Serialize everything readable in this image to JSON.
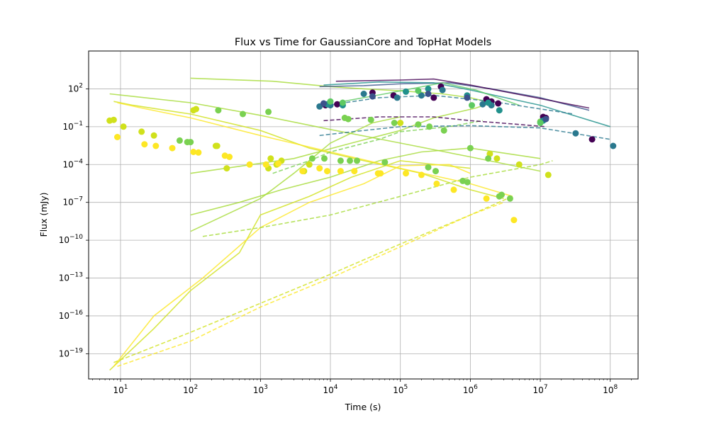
{
  "chart_data": {
    "type": "scatter",
    "title": "Flux vs Time for GaussianCore and TopHat Models",
    "xlabel": "Time (s)",
    "ylabel": "Flux (mJy)",
    "xscale": "log",
    "yscale": "log",
    "xlim": [
      3.5,
      250000000.0
    ],
    "ylim": [
      1e-21,
      100000.0
    ],
    "grid": true,
    "x_ticks": [
      {
        "value": 10,
        "base": "10",
        "exp": "1"
      },
      {
        "value": 100,
        "base": "10",
        "exp": "2"
      },
      {
        "value": 1000,
        "base": "10",
        "exp": "3"
      },
      {
        "value": 10000,
        "base": "10",
        "exp": "4"
      },
      {
        "value": 100000,
        "base": "10",
        "exp": "5"
      },
      {
        "value": 1000000,
        "base": "10",
        "exp": "6"
      },
      {
        "value": 10000000,
        "base": "10",
        "exp": "7"
      },
      {
        "value": 100000000,
        "base": "10",
        "exp": "8"
      }
    ],
    "y_ticks": [
      {
        "value": 1e-19,
        "base": "10",
        "exp": "−19"
      },
      {
        "value": 1e-16,
        "base": "10",
        "exp": "−16"
      },
      {
        "value": 1e-13,
        "base": "10",
        "exp": "−13"
      },
      {
        "value": 1e-10,
        "base": "10",
        "exp": "−10"
      },
      {
        "value": 1e-07,
        "base": "10",
        "exp": "−7"
      },
      {
        "value": 0.0001,
        "base": "10",
        "exp": "−4"
      },
      {
        "value": 0.1,
        "base": "10",
        "exp": "−1"
      },
      {
        "value": 100,
        "base": "10",
        "exp": "2"
      }
    ],
    "colormap": "viridis",
    "lines": [
      {
        "color": "#a5db36",
        "dash": false,
        "x": [
          100,
          1500,
          10000,
          30000,
          100000,
          400000,
          1000000,
          2000000,
          1200000,
          300000,
          100000,
          20000,
          3000,
          100
        ],
        "y": [
          700,
          400,
          150,
          100,
          70,
          40,
          20,
          8,
          3,
          0.5,
          0.05,
          0.005,
          0.0003,
          2e-05
        ]
      },
      {
        "color": "#a5db36",
        "dash": false,
        "x": [
          7,
          15,
          100,
          1000,
          10000,
          100000,
          1000000,
          10000000
        ],
        "y": [
          40,
          25,
          8,
          0.8,
          0.06,
          0.005,
          0.0004,
          3e-05
        ]
      },
      {
        "color": "#a5db36",
        "dash": false,
        "x": [
          100,
          500,
          2000,
          10000,
          50000,
          200000,
          1000000,
          10000000
        ],
        "y": [
          1e-08,
          1e-07,
          1e-06,
          1e-05,
          0.0002,
          0.001,
          0.002,
          0.0003
        ]
      },
      {
        "color": "#a5db36",
        "dash": false,
        "x": [
          100,
          1000,
          3000,
          10000,
          40000,
          100000
        ],
        "y": [
          5e-10,
          2e-07,
          2e-05,
          0.005,
          0.2,
          0.6
        ]
      },
      {
        "color": "#d0e11c",
        "dash": false,
        "x": [
          8,
          15,
          100,
          1000,
          5000,
          30000,
          200000,
          1000000,
          3000000
        ],
        "y": [
          10,
          5,
          1,
          0.05,
          0.002,
          0.0002,
          2e-05,
          1e-06,
          2e-07
        ]
      },
      {
        "color": "#d0e11c",
        "dash": false,
        "x": [
          7,
          30,
          100,
          500,
          1000,
          5000,
          20000,
          100000,
          1000000
        ],
        "y": [
          5e-21,
          1e-17,
          1e-14,
          1e-11,
          1e-08,
          3e-07,
          1e-05,
          0.0002,
          5e-05
        ]
      },
      {
        "color": "#fde725",
        "dash": false,
        "x": [
          9,
          20,
          100,
          1000,
          10000,
          100000,
          1000000,
          4000000
        ],
        "y": [
          8,
          3,
          0.5,
          0.02,
          0.001,
          5e-05,
          3e-06,
          3e-07
        ]
      },
      {
        "color": "#fde725",
        "dash": false,
        "x": [
          8,
          30,
          150,
          1000,
          5000,
          30000,
          100000,
          500000,
          1000000
        ],
        "y": [
          1e-20,
          1e-16,
          1e-13,
          1e-09,
          1e-07,
          3e-06,
          8e-05,
          0.0001,
          2e-05
        ]
      },
      {
        "color": "#d0e11c",
        "dash": true,
        "x": [
          8,
          100,
          1000,
          10000,
          100000,
          1000000,
          4000000
        ],
        "y": [
          2e-20,
          5e-18,
          1e-15,
          2e-13,
          5e-11,
          1e-08,
          3e-07
        ]
      },
      {
        "color": "#fde725",
        "dash": true,
        "x": [
          9,
          100,
          1000,
          10000,
          100000,
          1000000,
          3000000
        ],
        "y": [
          1e-20,
          1e-18,
          5e-16,
          1e-13,
          3e-11,
          1e-08,
          1e-07
        ]
      },
      {
        "color": "#a5db36",
        "dash": true,
        "x": [
          150,
          1000,
          10000,
          100000,
          1000000,
          10000000,
          15000000
        ],
        "y": [
          2e-10,
          1e-09,
          1e-08,
          3e-07,
          1e-05,
          0.0001,
          0.0002
        ]
      },
      {
        "color": "#7ad151",
        "dash": true,
        "x": [
          1500,
          5000,
          10000,
          50000,
          100000,
          500000,
          1500000
        ],
        "y": [
          2e-05,
          0.0002,
          0.001,
          0.01,
          0.04,
          0.1,
          0.3
        ]
      },
      {
        "color": "#440154",
        "dash": true,
        "x": [
          8000,
          50000,
          300000,
          1000000,
          5000000,
          12000000
        ],
        "y": [
          0.3,
          0.6,
          0.6,
          0.3,
          0.15,
          0.1
        ]
      },
      {
        "color": "#2a788e",
        "dash": true,
        "x": [
          7000,
          30000,
          100000,
          1000000,
          10000000,
          100000000
        ],
        "y": [
          0.02,
          0.05,
          0.1,
          0.12,
          0.08,
          0.01
        ]
      },
      {
        "color": "#3b528b",
        "dash": false,
        "x": [
          7000,
          30000,
          100000,
          500000,
          2000000,
          10000000,
          50000000
        ],
        "y": [
          150,
          180,
          250,
          300,
          100,
          20,
          2
        ]
      },
      {
        "color": "#21918c",
        "dash": false,
        "x": [
          8000,
          50000,
          300000,
          1000000,
          10000000,
          100000000
        ],
        "y": [
          200,
          350,
          300,
          80,
          5,
          0.1
        ]
      },
      {
        "color": "#440154",
        "dash": false,
        "x": [
          12000,
          100000,
          300000,
          1000000,
          50000000
        ],
        "y": [
          400,
          500,
          600,
          200,
          3
        ]
      },
      {
        "color": "#5ec962",
        "dash": false,
        "x": [
          12000,
          60000,
          400000,
          1200000,
          5000000
        ],
        "y": [
          8,
          40,
          300,
          80,
          5
        ]
      },
      {
        "color": "#2a788e",
        "dash": true,
        "x": [
          9000,
          50000,
          300000,
          2000000,
          30000000
        ],
        "y": [
          5,
          20,
          30,
          10,
          1
        ]
      }
    ],
    "points": [
      {
        "color": "#d0e11c",
        "x": [
          7,
          8,
          11,
          20,
          30,
          110,
          120,
          230,
          240,
          330,
          1300,
          1400,
          1700,
          2000,
          4200,
          5000,
          100000.0,
          1900000.0,
          2400000.0,
          5000000.0,
          13000000.0
        ],
        "y": [
          0.3,
          0.35,
          0.1,
          0.04,
          0.02,
          2,
          2.5,
          0.003,
          0.003,
          5e-05,
          5e-05,
          0.0003,
          0.0001,
          0.0002,
          3e-05,
          0.0001,
          0.2,
          0.0007,
          0.0003,
          0.0001,
          1.5e-05
        ]
      },
      {
        "color": "#fde725",
        "x": [
          9,
          22,
          32,
          55,
          110,
          130,
          310,
          360,
          700,
          1200,
          1800,
          4000,
          7000,
          9000,
          14000,
          22000,
          48000,
          52000,
          120000,
          200000,
          330000,
          580000,
          1700000.0,
          4200000.0
        ],
        "y": [
          0.015,
          0.004,
          0.003,
          0.002,
          0.001,
          0.0009,
          0.0005,
          0.0004,
          0.0001,
          0.0001,
          0.00012,
          3e-05,
          5e-05,
          3e-05,
          3e-05,
          3e-05,
          2e-05,
          2e-05,
          2e-05,
          1.5e-05,
          3e-06,
          1e-06,
          2e-07,
          4e-09
        ]
      },
      {
        "color": "#7ad151",
        "x": [
          70,
          90,
          100,
          250,
          560,
          1300,
          5500,
          8200,
          16000,
          18000,
          38000,
          82000,
          180000,
          260000,
          420000,
          1000000.0,
          1800000.0,
          2600000.0,
          3700000.0,
          780000.0,
          910000.0,
          2800000.0,
          10000000.0,
          14000,
          19000,
          24000,
          60000,
          250000.0,
          320000.0
        ],
        "y": [
          0.008,
          0.006,
          0.006,
          2,
          1,
          1.5,
          0.0003,
          0.0003,
          0.5,
          0.4,
          0.35,
          0.2,
          0.15,
          0.1,
          0.05,
          0.002,
          0.0003,
          3e-07,
          2e-07,
          5e-06,
          4e-06,
          4e-07,
          0.25,
          0.0002,
          0.0002,
          0.0002,
          0.00015,
          6e-05,
          3e-05
        ]
      },
      {
        "color": "#440154",
        "x": [
          8500,
          12500,
          40000,
          80000,
          300000,
          380000,
          1700000,
          2000000,
          2500000,
          11000000.0,
          12000000.0,
          55000000.0
        ],
        "y": [
          5,
          6,
          50,
          30,
          20,
          150,
          15,
          10,
          7,
          0.6,
          0.5,
          0.01
        ]
      },
      {
        "color": "#2a788e",
        "x": [
          7000,
          10000,
          30000,
          90000,
          200000,
          400000,
          1500000,
          2000000,
          32000000.0,
          110000000.0
        ],
        "y": [
          4,
          5,
          40,
          20,
          30,
          80,
          6,
          5,
          0.03,
          0.003
        ]
      },
      {
        "color": "#21918c",
        "x": [
          9000,
          15000,
          120000,
          250000,
          900000,
          1800000,
          2600000,
          11000000.0
        ],
        "y": [
          6,
          5,
          60,
          100,
          30,
          8,
          2,
          0.3
        ]
      },
      {
        "color": "#5ec962",
        "x": [
          10000,
          15000,
          180000,
          1050000,
          10000000.0
        ],
        "y": [
          10,
          8,
          70,
          5,
          0.2
        ]
      },
      {
        "color": "#3b528b",
        "x": [
          8000,
          40000,
          250000,
          900000,
          12000000.0
        ],
        "y": [
          7,
          25,
          40,
          20,
          0.4
        ]
      }
    ]
  }
}
